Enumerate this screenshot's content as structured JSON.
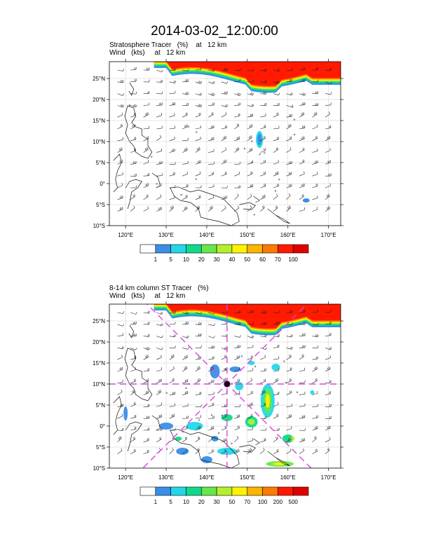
{
  "title": "2014-03-02_12:00:00",
  "panel1": {
    "line1": "Stratosphere Tracer   (%)    at   12 km",
    "line2": "Wind   (kts)     at   12 km",
    "colorbar_labels": [
      "1",
      "5",
      "10",
      "20",
      "30",
      "40",
      "50",
      "60",
      "70",
      "100"
    ]
  },
  "panel2": {
    "line1": "8-14 km column ST Tracer   (%)",
    "line2": "Wind   (kts)     at   12 km",
    "colorbar_labels": [
      "1",
      "5",
      "10",
      "20",
      "30",
      "50",
      "70",
      "100",
      "200",
      "500"
    ]
  },
  "axes": {
    "lat_labels": [
      "25°N",
      "20°N",
      "15°N",
      "10°N",
      "5°N",
      "0°",
      "5°S",
      "10°S"
    ],
    "lon_labels": [
      "120°E",
      "130°E",
      "140°E",
      "150°E",
      "160°E",
      "170°E"
    ]
  },
  "colors": {
    "levels": [
      "#ffffff",
      "#3a8ee8",
      "#22d8e8",
      "#11d98c",
      "#66e84a",
      "#b4f02a",
      "#fff200",
      "#ffb400",
      "#ff7a00",
      "#ff1a00",
      "#e00000"
    ],
    "wind_barb": "#222222",
    "coastline": "#111111",
    "grid": "#cccccc",
    "marker_lines": "#e040e0"
  },
  "chart_data": [
    {
      "type": "heatmap",
      "title": "Stratosphere Tracer   (%)    at   12 km",
      "x_range": [
        116,
        173
      ],
      "y_range": [
        -10,
        29
      ],
      "x_ticks": [
        120,
        130,
        140,
        150,
        160,
        170
      ],
      "y_ticks": [
        25,
        20,
        15,
        10,
        5,
        0,
        -5,
        -10
      ],
      "levels": [
        1,
        5,
        10,
        20,
        30,
        40,
        50,
        60,
        70,
        100
      ],
      "grid": true,
      "features": [
        {
          "name": "northern tracer band",
          "lon_from": 127,
          "lon_to": 173,
          "lat_from": 24,
          "lat_to": 29,
          "max_level": 100
        },
        {
          "name": "tracer patch",
          "lon": 153,
          "lat": 10.5,
          "level": 5
        },
        {
          "name": "tracer patch",
          "lon": 164.5,
          "lat": -4,
          "level": 5
        }
      ]
    },
    {
      "type": "heatmap",
      "title": "8-14 km column ST Tracer   (%)",
      "x_range": [
        116,
        173
      ],
      "y_range": [
        -10,
        29
      ],
      "x_ticks": [
        120,
        130,
        140,
        150,
        160,
        170
      ],
      "y_ticks": [
        25,
        20,
        15,
        10,
        5,
        0,
        -5,
        -10
      ],
      "levels": [
        1,
        5,
        10,
        20,
        30,
        50,
        70,
        100,
        200,
        500
      ],
      "grid": true,
      "center_marker": {
        "lon": 145,
        "lat": 10
      }
    }
  ]
}
